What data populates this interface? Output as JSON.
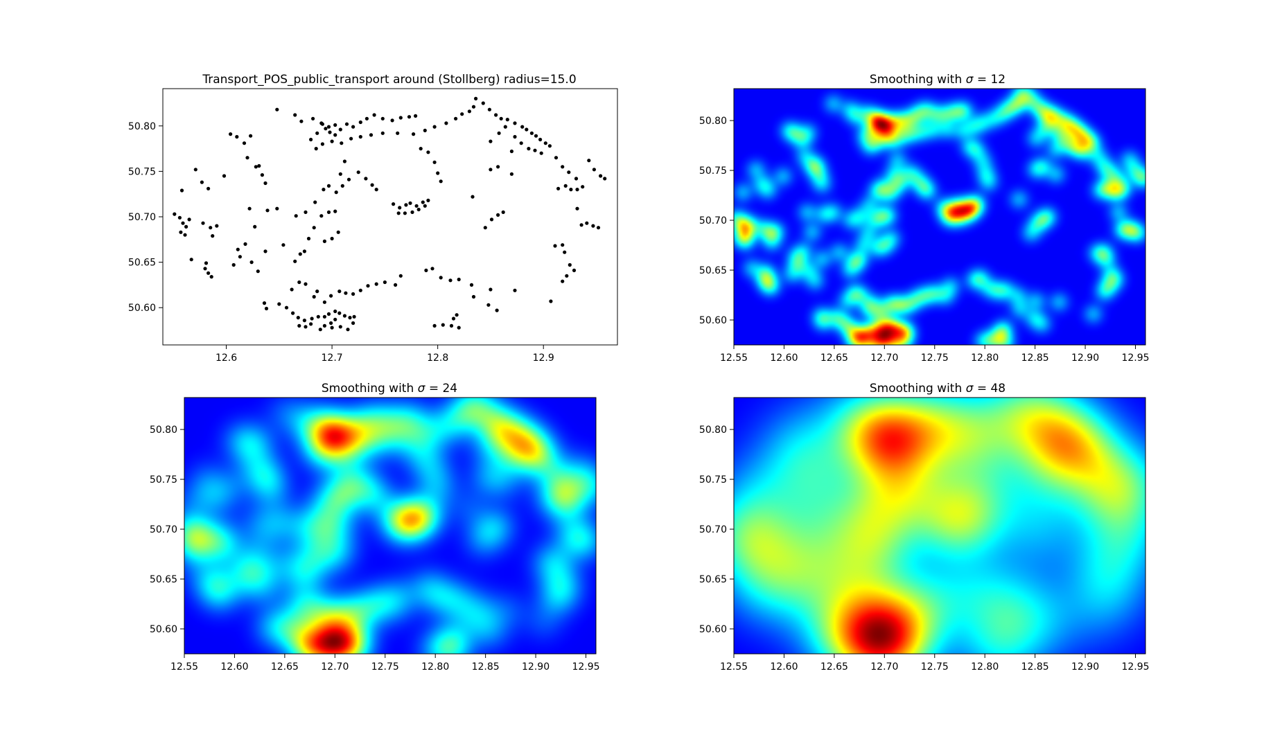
{
  "chart_data": [
    {
      "type": "scatter",
      "title": "Transport_POS_public_transport around (Stollberg) radius=15.0",
      "xlabel": "",
      "ylabel": "",
      "xlim": [
        12.54,
        12.97
      ],
      "ylim": [
        50.559,
        50.841
      ],
      "xticks": [
        "12.6",
        "12.7",
        "12.8",
        "12.9"
      ],
      "xtick_values": [
        12.6,
        12.7,
        12.8,
        12.9
      ],
      "yticks": [
        "50.60",
        "50.65",
        "50.70",
        "50.75",
        "50.80"
      ],
      "ytick_values": [
        50.6,
        50.65,
        50.7,
        50.75,
        50.8
      ],
      "marker_color": "#000000",
      "points": [
        [
          12.551,
          50.703
        ],
        [
          12.556,
          50.699
        ],
        [
          12.559,
          50.693
        ],
        [
          12.562,
          50.689
        ],
        [
          12.557,
          50.683
        ],
        [
          12.561,
          50.68
        ],
        [
          12.565,
          50.697
        ],
        [
          12.558,
          50.729
        ],
        [
          12.567,
          50.653
        ],
        [
          12.578,
          50.693
        ],
        [
          12.585,
          50.688
        ],
        [
          12.591,
          50.69
        ],
        [
          12.58,
          50.643
        ],
        [
          12.583,
          50.638
        ],
        [
          12.586,
          50.634
        ],
        [
          12.581,
          50.649
        ],
        [
          12.571,
          50.752
        ],
        [
          12.577,
          50.738
        ],
        [
          12.583,
          50.731
        ],
        [
          12.587,
          50.679
        ],
        [
          12.598,
          50.745
        ],
        [
          12.604,
          50.791
        ],
        [
          12.61,
          50.788
        ],
        [
          12.617,
          50.781
        ],
        [
          12.623,
          50.789
        ],
        [
          12.62,
          50.765
        ],
        [
          12.628,
          50.755
        ],
        [
          12.631,
          50.756
        ],
        [
          12.634,
          50.746
        ],
        [
          12.637,
          50.737
        ],
        [
          12.622,
          50.709
        ],
        [
          12.639,
          50.707
        ],
        [
          12.648,
          50.709
        ],
        [
          12.627,
          50.689
        ],
        [
          12.611,
          50.664
        ],
        [
          12.607,
          50.647
        ],
        [
          12.613,
          50.656
        ],
        [
          12.618,
          50.67
        ],
        [
          12.624,
          50.65
        ],
        [
          12.63,
          50.64
        ],
        [
          12.637,
          50.662
        ],
        [
          12.654,
          50.669
        ],
        [
          12.665,
          50.651
        ],
        [
          12.67,
          50.659
        ],
        [
          12.674,
          50.662
        ],
        [
          12.678,
          50.676
        ],
        [
          12.683,
          50.688
        ],
        [
          12.69,
          50.701
        ],
        [
          12.697,
          50.705
        ],
        [
          12.703,
          50.706
        ],
        [
          12.693,
          50.673
        ],
        [
          12.7,
          50.676
        ],
        [
          12.706,
          50.683
        ],
        [
          12.71,
          50.734
        ],
        [
          12.716,
          50.741
        ],
        [
          12.725,
          50.749
        ],
        [
          12.732,
          50.742
        ],
        [
          12.738,
          50.735
        ],
        [
          12.742,
          50.73
        ],
        [
          12.648,
          50.818
        ],
        [
          12.665,
          50.812
        ],
        [
          12.671,
          50.805
        ],
        [
          12.682,
          50.808
        ],
        [
          12.69,
          50.803
        ],
        [
          12.697,
          50.799
        ],
        [
          12.703,
          50.801
        ],
        [
          12.708,
          50.796
        ],
        [
          12.714,
          50.802
        ],
        [
          12.72,
          50.799
        ],
        [
          12.727,
          50.804
        ],
        [
          12.733,
          50.808
        ],
        [
          12.74,
          50.812
        ],
        [
          12.748,
          50.808
        ],
        [
          12.757,
          50.806
        ],
        [
          12.765,
          50.809
        ],
        [
          12.773,
          50.81
        ],
        [
          12.779,
          50.811
        ],
        [
          12.685,
          50.775
        ],
        [
          12.691,
          50.78
        ],
        [
          12.7,
          50.783
        ],
        [
          12.709,
          50.781
        ],
        [
          12.718,
          50.786
        ],
        [
          12.727,
          50.788
        ],
        [
          12.737,
          50.79
        ],
        [
          12.748,
          50.792
        ],
        [
          12.762,
          50.792
        ],
        [
          12.777,
          50.791
        ],
        [
          12.788,
          50.795
        ],
        [
          12.797,
          50.799
        ],
        [
          12.808,
          50.803
        ],
        [
          12.817,
          50.808
        ],
        [
          12.823,
          50.813
        ],
        [
          12.83,
          50.816
        ],
        [
          12.834,
          50.821
        ],
        [
          12.836,
          50.83
        ],
        [
          12.843,
          50.825
        ],
        [
          12.849,
          50.818
        ],
        [
          12.855,
          50.812
        ],
        [
          12.86,
          50.808
        ],
        [
          12.866,
          50.807
        ],
        [
          12.873,
          50.803
        ],
        [
          12.88,
          50.799
        ],
        [
          12.884,
          50.796
        ],
        [
          12.889,
          50.792
        ],
        [
          12.893,
          50.789
        ],
        [
          12.897,
          50.785
        ],
        [
          12.902,
          50.781
        ],
        [
          12.873,
          50.788
        ],
        [
          12.879,
          50.781
        ],
        [
          12.886,
          50.775
        ],
        [
          12.892,
          50.773
        ],
        [
          12.898,
          50.77
        ],
        [
          12.85,
          50.783
        ],
        [
          12.858,
          50.792
        ],
        [
          12.864,
          50.799
        ],
        [
          12.87,
          50.772
        ],
        [
          12.906,
          50.778
        ],
        [
          12.912,
          50.765
        ],
        [
          12.918,
          50.755
        ],
        [
          12.924,
          50.749
        ],
        [
          12.931,
          50.742
        ],
        [
          12.937,
          50.733
        ],
        [
          12.943,
          50.762
        ],
        [
          12.948,
          50.752
        ],
        [
          12.954,
          50.745
        ],
        [
          12.958,
          50.742
        ],
        [
          12.914,
          50.731
        ],
        [
          12.921,
          50.734
        ],
        [
          12.926,
          50.73
        ],
        [
          12.932,
          50.73
        ],
        [
          12.936,
          50.691
        ],
        [
          12.941,
          50.693
        ],
        [
          12.947,
          50.69
        ],
        [
          12.952,
          50.688
        ],
        [
          12.932,
          50.709
        ],
        [
          12.92,
          50.661
        ],
        [
          12.925,
          50.647
        ],
        [
          12.929,
          50.641
        ],
        [
          12.922,
          50.635
        ],
        [
          12.918,
          50.629
        ],
        [
          12.907,
          50.607
        ],
        [
          12.911,
          50.668
        ],
        [
          12.918,
          50.669
        ],
        [
          12.845,
          50.688
        ],
        [
          12.851,
          50.697
        ],
        [
          12.857,
          50.702
        ],
        [
          12.862,
          50.705
        ],
        [
          12.833,
          50.722
        ],
        [
          12.85,
          50.752
        ],
        [
          12.857,
          50.755
        ],
        [
          12.87,
          50.747
        ],
        [
          12.774,
          50.715
        ],
        [
          12.78,
          50.712
        ],
        [
          12.786,
          50.716
        ],
        [
          12.764,
          50.71
        ],
        [
          12.769,
          50.704
        ],
        [
          12.758,
          50.714
        ],
        [
          12.791,
          50.718
        ],
        [
          12.776,
          50.705
        ],
        [
          12.782,
          50.708
        ],
        [
          12.788,
          50.712
        ],
        [
          12.77,
          50.713
        ],
        [
          12.763,
          50.704
        ],
        [
          12.797,
          50.76
        ],
        [
          12.8,
          50.748
        ],
        [
          12.803,
          50.739
        ],
        [
          12.784,
          50.775
        ],
        [
          12.791,
          50.771
        ],
        [
          12.666,
          50.701
        ],
        [
          12.675,
          50.705
        ],
        [
          12.684,
          50.716
        ],
        [
          12.692,
          50.73
        ],
        [
          12.697,
          50.734
        ],
        [
          12.704,
          50.727
        ],
        [
          12.708,
          50.747
        ],
        [
          12.712,
          50.761
        ],
        [
          12.703,
          50.79
        ],
        [
          12.698,
          50.793
        ],
        [
          12.694,
          50.797
        ],
        [
          12.691,
          50.802
        ],
        [
          12.686,
          50.792
        ],
        [
          12.68,
          50.785
        ],
        [
          12.683,
          50.612
        ],
        [
          12.693,
          50.606
        ],
        [
          12.699,
          50.613
        ],
        [
          12.707,
          50.618
        ],
        [
          12.713,
          50.616
        ],
        [
          12.72,
          50.615
        ],
        [
          12.727,
          50.619
        ],
        [
          12.734,
          50.624
        ],
        [
          12.742,
          50.626
        ],
        [
          12.75,
          50.628
        ],
        [
          12.657,
          50.6
        ],
        [
          12.663,
          50.594
        ],
        [
          12.668,
          50.589
        ],
        [
          12.674,
          50.586
        ],
        [
          12.681,
          50.588
        ],
        [
          12.687,
          50.59
        ],
        [
          12.693,
          50.59
        ],
        [
          12.697,
          50.593
        ],
        [
          12.703,
          50.596
        ],
        [
          12.707,
          50.594
        ],
        [
          12.712,
          50.591
        ],
        [
          12.717,
          50.589
        ],
        [
          12.721,
          50.59
        ],
        [
          12.703,
          50.587
        ],
        [
          12.699,
          50.583
        ],
        [
          12.693,
          50.58
        ],
        [
          12.689,
          50.576
        ],
        [
          12.7,
          50.578
        ],
        [
          12.708,
          50.579
        ],
        [
          12.715,
          50.576
        ],
        [
          12.72,
          50.583
        ],
        [
          12.669,
          50.58
        ],
        [
          12.675,
          50.579
        ],
        [
          12.68,
          50.582
        ],
        [
          12.65,
          50.604
        ],
        [
          12.636,
          50.605
        ],
        [
          12.638,
          50.599
        ],
        [
          12.662,
          50.62
        ],
        [
          12.669,
          50.628
        ],
        [
          12.675,
          50.626
        ],
        [
          12.686,
          50.618
        ],
        [
          12.797,
          50.58
        ],
        [
          12.805,
          50.581
        ],
        [
          12.813,
          50.58
        ],
        [
          12.815,
          50.588
        ],
        [
          12.818,
          50.592
        ],
        [
          12.82,
          50.578
        ],
        [
          12.803,
          50.633
        ],
        [
          12.812,
          50.63
        ],
        [
          12.82,
          50.631
        ],
        [
          12.832,
          50.625
        ],
        [
          12.85,
          50.62
        ],
        [
          12.834,
          50.612
        ],
        [
          12.848,
          50.603
        ],
        [
          12.76,
          50.625
        ],
        [
          12.765,
          50.635
        ],
        [
          12.789,
          50.641
        ],
        [
          12.795,
          50.643
        ],
        [
          12.873,
          50.619
        ],
        [
          12.856,
          50.597
        ]
      ]
    },
    {
      "type": "heatmap",
      "title": "Smoothing with  σ = 12",
      "title_prefix": "Smoothing with  ",
      "title_sigma": "σ",
      "title_suffix": " = 12",
      "sigma": 12,
      "colormap": "jet",
      "xlim": [
        12.55,
        12.96
      ],
      "ylim": [
        50.575,
        50.832
      ],
      "xticks": [
        "12.55",
        "12.60",
        "12.65",
        "12.70",
        "12.75",
        "12.80",
        "12.85",
        "12.90",
        "12.95"
      ],
      "xtick_values": [
        12.55,
        12.6,
        12.65,
        12.7,
        12.75,
        12.8,
        12.85,
        12.9,
        12.95
      ],
      "yticks": [
        "50.60",
        "50.65",
        "50.70",
        "50.75",
        "50.80"
      ],
      "ytick_values": [
        50.6,
        50.65,
        50.7,
        50.75,
        50.8
      ]
    },
    {
      "type": "heatmap",
      "title": "Smoothing with  σ = 24",
      "title_prefix": "Smoothing with  ",
      "title_sigma": "σ",
      "title_suffix": " = 24",
      "sigma": 24,
      "colormap": "jet",
      "xlim": [
        12.55,
        12.96
      ],
      "ylim": [
        50.575,
        50.832
      ],
      "xticks": [
        "12.55",
        "12.60",
        "12.65",
        "12.70",
        "12.75",
        "12.80",
        "12.85",
        "12.90",
        "12.95"
      ],
      "xtick_values": [
        12.55,
        12.6,
        12.65,
        12.7,
        12.75,
        12.8,
        12.85,
        12.9,
        12.95
      ],
      "yticks": [
        "50.60",
        "50.65",
        "50.70",
        "50.75",
        "50.80"
      ],
      "ytick_values": [
        50.6,
        50.65,
        50.7,
        50.75,
        50.8
      ]
    },
    {
      "type": "heatmap",
      "title": "Smoothing with  σ = 48",
      "title_prefix": "Smoothing with  ",
      "title_sigma": "σ",
      "title_suffix": " = 48",
      "sigma": 48,
      "colormap": "jet",
      "xlim": [
        12.55,
        12.96
      ],
      "ylim": [
        50.575,
        50.832
      ],
      "xticks": [
        "12.55",
        "12.60",
        "12.65",
        "12.70",
        "12.75",
        "12.80",
        "12.85",
        "12.90",
        "12.95"
      ],
      "xtick_values": [
        12.55,
        12.6,
        12.65,
        12.7,
        12.75,
        12.8,
        12.85,
        12.9,
        12.95
      ],
      "yticks": [
        "50.60",
        "50.65",
        "50.70",
        "50.75",
        "50.80"
      ],
      "ytick_values": [
        50.6,
        50.65,
        50.7,
        50.75,
        50.8
      ]
    }
  ]
}
